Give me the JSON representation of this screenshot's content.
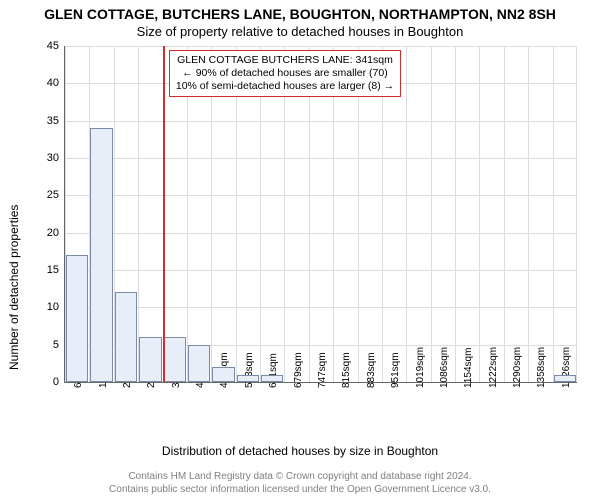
{
  "title_main": "GLEN COTTAGE, BUTCHERS LANE, BOUGHTON, NORTHAMPTON, NN2 8SH",
  "title_sub": "Size of property relative to detached houses in Boughton",
  "y_label": "Number of detached properties",
  "x_label": "Distribution of detached houses by size in Boughton",
  "attribution_line1": "Contains HM Land Registry data © Crown copyright and database right 2024.",
  "attribution_line2": "Contains public sector information licensed under the Open Government Licence v3.0.",
  "chart": {
    "type": "histogram",
    "background_color": "#ffffff",
    "grid_color": "#dcdcdc",
    "axis_color": "#666666",
    "bar_fill": "#e8eef8",
    "bar_stroke": "#7a8aa8",
    "y": {
      "min": 0,
      "max": 45,
      "step": 5
    },
    "x_ticks": [
      "68sqm",
      "136sqm",
      "204sqm",
      "272sqm",
      "340sqm",
      "407sqm",
      "475sqm",
      "543sqm",
      "611sqm",
      "679sqm",
      "747sqm",
      "815sqm",
      "883sqm",
      "951sqm",
      "1019sqm",
      "1086sqm",
      "1154sqm",
      "1222sqm",
      "1290sqm",
      "1358sqm",
      "1426sqm"
    ],
    "values": [
      17,
      34,
      12,
      6,
      6,
      5,
      2,
      1,
      1,
      0,
      0,
      0,
      0,
      0,
      0,
      0,
      0,
      0,
      0,
      0,
      1
    ],
    "reference": {
      "index": 4,
      "frac": 0.015,
      "color": "#d12d2d"
    },
    "annotation": {
      "lines": [
        "GLEN COTTAGE BUTCHERS LANE: 341sqm",
        "← 90% of detached houses are smaller (70)",
        "10% of semi-detached houses are larger (8) →"
      ],
      "border_color": "#d12d2d"
    }
  },
  "fonts": {
    "title_main_size": 14,
    "title_sub_size": 13,
    "axis_label_size": 12,
    "tick_size": 11,
    "xtick_size": 10,
    "annotation_size": 10.5,
    "attribution_size": 10
  }
}
